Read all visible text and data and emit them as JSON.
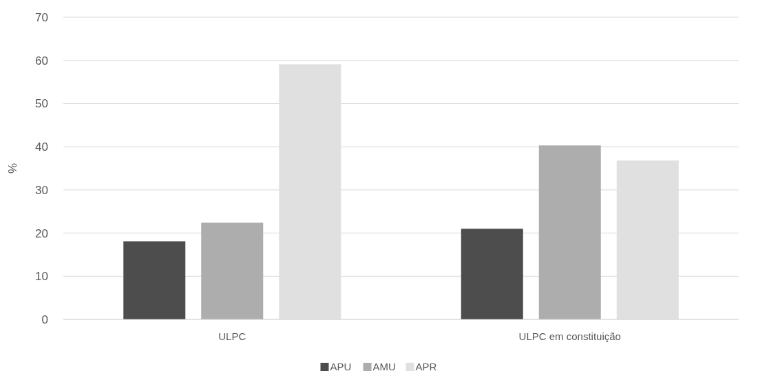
{
  "chart_data": {
    "type": "bar",
    "ylabel": "%",
    "categories": [
      "ULPC",
      "ULPC em constituição"
    ],
    "series": [
      {
        "name": "APU",
        "color": "#4d4d4d",
        "values": [
          18.1,
          21
        ]
      },
      {
        "name": "AMU",
        "color": "#adadad",
        "values": [
          22.4,
          40.3
        ]
      },
      {
        "name": "APR",
        "color": "#e0e0e0",
        "values": [
          59.1,
          36.8
        ]
      }
    ],
    "ylim": [
      0,
      70
    ],
    "yticks": [
      0,
      10,
      20,
      30,
      40,
      50,
      60,
      70
    ],
    "grid": "y",
    "legend": "bottom"
  }
}
